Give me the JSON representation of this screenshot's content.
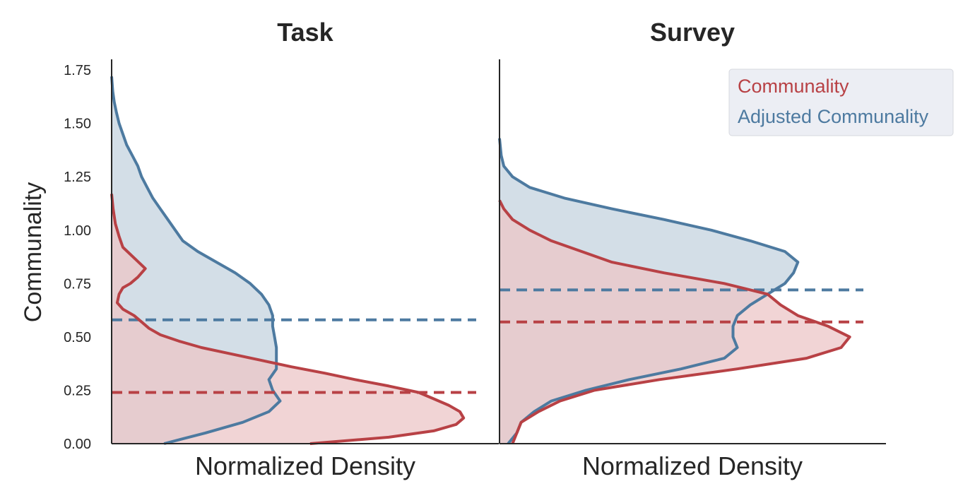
{
  "colors": {
    "communality": "#b84145",
    "adjusted": "#4d7aa0",
    "communality_fill": "#ecc6c7",
    "adjusted_fill": "#d3dee7",
    "legend_bg": "#eceef4"
  },
  "chart_data": {
    "type": "area",
    "orientation": "horizontal-density",
    "ylabel": "Communality",
    "ylim": [
      0,
      1.8
    ],
    "y_ticks": [
      "0.00",
      "0.25",
      "0.50",
      "0.75",
      "1.00",
      "1.25",
      "1.50",
      "1.75"
    ],
    "legend": {
      "position": "top-right",
      "entries": [
        "Communality",
        "Adjusted Communality"
      ]
    },
    "panels": [
      {
        "title": "Task",
        "xlabel": "Normalized Density",
        "series": [
          {
            "name": "Communality",
            "color_key": "communality",
            "mean": 0.24,
            "points": [
              [
                0.0,
                0.53
              ],
              [
                0.03,
                0.74
              ],
              [
                0.06,
                0.86
              ],
              [
                0.09,
                0.92
              ],
              [
                0.12,
                0.94
              ],
              [
                0.15,
                0.93
              ],
              [
                0.18,
                0.9
              ],
              [
                0.21,
                0.86
              ],
              [
                0.24,
                0.82
              ],
              [
                0.27,
                0.74
              ],
              [
                0.3,
                0.65
              ],
              [
                0.33,
                0.57
              ],
              [
                0.36,
                0.48
              ],
              [
                0.39,
                0.4
              ],
              [
                0.42,
                0.32
              ],
              [
                0.45,
                0.24
              ],
              [
                0.48,
                0.18
              ],
              [
                0.51,
                0.13
              ],
              [
                0.54,
                0.1
              ],
              [
                0.57,
                0.08
              ],
              [
                0.6,
                0.06
              ],
              [
                0.63,
                0.03
              ],
              [
                0.66,
                0.015
              ],
              [
                0.7,
                0.02
              ],
              [
                0.73,
                0.03
              ],
              [
                0.75,
                0.05
              ],
              [
                0.78,
                0.07
              ],
              [
                0.82,
                0.09
              ],
              [
                0.87,
                0.06
              ],
              [
                0.92,
                0.03
              ],
              [
                0.97,
                0.02
              ],
              [
                1.03,
                0.01
              ],
              [
                1.1,
                0.004
              ],
              [
                1.17,
                0.0
              ]
            ]
          },
          {
            "name": "Adjusted Communality",
            "color_key": "adjusted",
            "mean": 0.58,
            "points": [
              [
                0.0,
                0.14
              ],
              [
                0.05,
                0.25
              ],
              [
                0.1,
                0.35
              ],
              [
                0.15,
                0.42
              ],
              [
                0.2,
                0.45
              ],
              [
                0.25,
                0.43
              ],
              [
                0.3,
                0.42
              ],
              [
                0.35,
                0.44
              ],
              [
                0.4,
                0.44
              ],
              [
                0.45,
                0.44
              ],
              [
                0.5,
                0.435
              ],
              [
                0.55,
                0.43
              ],
              [
                0.6,
                0.43
              ],
              [
                0.65,
                0.42
              ],
              [
                0.7,
                0.4
              ],
              [
                0.75,
                0.37
              ],
              [
                0.8,
                0.33
              ],
              [
                0.85,
                0.28
              ],
              [
                0.9,
                0.23
              ],
              [
                0.95,
                0.19
              ],
              [
                1.0,
                0.17
              ],
              [
                1.05,
                0.15
              ],
              [
                1.1,
                0.13
              ],
              [
                1.15,
                0.11
              ],
              [
                1.2,
                0.095
              ],
              [
                1.25,
                0.08
              ],
              [
                1.3,
                0.07
              ],
              [
                1.35,
                0.055
              ],
              [
                1.4,
                0.04
              ],
              [
                1.45,
                0.03
              ],
              [
                1.5,
                0.02
              ],
              [
                1.55,
                0.013
              ],
              [
                1.6,
                0.007
              ],
              [
                1.65,
                0.003
              ],
              [
                1.72,
                0.0
              ]
            ]
          }
        ]
      },
      {
        "title": "Survey",
        "xlabel": "Normalized Density",
        "series": [
          {
            "name": "Communality",
            "color_key": "communality",
            "mean": 0.57,
            "points": [
              [
                0.0,
                0.03
              ],
              [
                0.1,
                0.05
              ],
              [
                0.15,
                0.09
              ],
              [
                0.2,
                0.14
              ],
              [
                0.25,
                0.22
              ],
              [
                0.3,
                0.37
              ],
              [
                0.35,
                0.55
              ],
              [
                0.4,
                0.71
              ],
              [
                0.45,
                0.79
              ],
              [
                0.5,
                0.81
              ],
              [
                0.55,
                0.76
              ],
              [
                0.6,
                0.69
              ],
              [
                0.65,
                0.65
              ],
              [
                0.7,
                0.62
              ],
              [
                0.75,
                0.52
              ],
              [
                0.8,
                0.38
              ],
              [
                0.85,
                0.26
              ],
              [
                0.9,
                0.19
              ],
              [
                0.95,
                0.12
              ],
              [
                1.0,
                0.07
              ],
              [
                1.05,
                0.03
              ],
              [
                1.1,
                0.01
              ],
              [
                1.14,
                0.0
              ]
            ]
          },
          {
            "name": "Adjusted Communality",
            "color_key": "adjusted",
            "mean": 0.72,
            "points": [
              [
                0.0,
                0.02
              ],
              [
                0.05,
                0.04
              ],
              [
                0.1,
                0.05
              ],
              [
                0.15,
                0.08
              ],
              [
                0.2,
                0.12
              ],
              [
                0.25,
                0.2
              ],
              [
                0.3,
                0.3
              ],
              [
                0.35,
                0.42
              ],
              [
                0.4,
                0.52
              ],
              [
                0.45,
                0.55
              ],
              [
                0.5,
                0.54
              ],
              [
                0.55,
                0.54
              ],
              [
                0.6,
                0.55
              ],
              [
                0.65,
                0.58
              ],
              [
                0.7,
                0.62
              ],
              [
                0.75,
                0.66
              ],
              [
                0.8,
                0.68
              ],
              [
                0.85,
                0.69
              ],
              [
                0.9,
                0.66
              ],
              [
                0.95,
                0.58
              ],
              [
                1.0,
                0.49
              ],
              [
                1.05,
                0.38
              ],
              [
                1.1,
                0.26
              ],
              [
                1.15,
                0.15
              ],
              [
                1.2,
                0.07
              ],
              [
                1.25,
                0.03
              ],
              [
                1.3,
                0.01
              ],
              [
                1.35,
                0.004
              ],
              [
                1.43,
                0.0
              ]
            ]
          }
        ]
      }
    ]
  }
}
